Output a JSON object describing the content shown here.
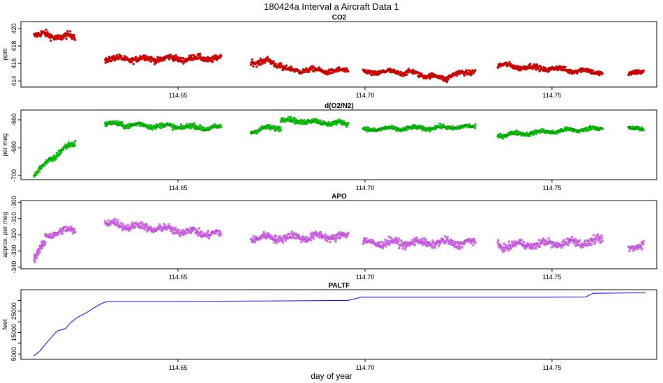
{
  "figure": {
    "title": "180424a   Interval a Aircraft Data 1",
    "xlabel": "day of year"
  },
  "chart_data": [
    {
      "type": "scatter",
      "title": "CO2",
      "ylabel": "ppm",
      "xlim": [
        114.608,
        114.778
      ],
      "ylim": [
        413.3,
        420.8
      ],
      "xticks": [
        "114.65",
        "114.70",
        "114.75"
      ],
      "xtick_values": [
        114.65,
        114.7,
        114.75
      ],
      "yticks": [
        414,
        416,
        418,
        420
      ],
      "grid": false,
      "colors": {
        "fill": "#ff0000",
        "stroke": "#8b0000"
      },
      "segments": [
        {
          "x_start": 114.6115,
          "x_end": 114.6225,
          "y_start": 419.3,
          "y_end": 419.0,
          "noise": 0.7
        },
        {
          "x_start": 114.6305,
          "x_end": 114.6615,
          "y_start": 416.5,
          "y_end": 416.6,
          "noise": 0.6
        },
        {
          "x_start": 114.6695,
          "x_end": 114.6735,
          "y_start": 416.2,
          "y_end": 416.3,
          "noise": 0.6
        },
        {
          "x_start": 114.6735,
          "x_end": 114.678,
          "y_start": 416.3,
          "y_end": 415.8,
          "noise": 0.6
        },
        {
          "x_start": 114.678,
          "x_end": 114.6955,
          "y_start": 415.3,
          "y_end": 415.1,
          "noise": 0.5
        },
        {
          "x_start": 114.6995,
          "x_end": 114.712,
          "y_start": 415.0,
          "y_end": 415.0,
          "noise": 0.5
        },
        {
          "x_start": 114.712,
          "x_end": 114.722,
          "y_start": 415.0,
          "y_end": 414.2,
          "noise": 0.5
        },
        {
          "x_start": 114.722,
          "x_end": 114.7295,
          "y_start": 414.5,
          "y_end": 415.2,
          "noise": 0.5
        },
        {
          "x_start": 114.7355,
          "x_end": 114.7635,
          "y_start": 415.8,
          "y_end": 415.0,
          "noise": 0.5
        },
        {
          "x_start": 114.7705,
          "x_end": 114.7745,
          "y_start": 414.6,
          "y_end": 415.2,
          "noise": 0.5
        }
      ]
    },
    {
      "type": "scatter",
      "title": "d(O2/N2)",
      "ylabel": "per meg",
      "xlim": [
        114.608,
        114.778
      ],
      "ylim": [
        -703,
        -653
      ],
      "xticks": [
        "114.65",
        "114.70",
        "114.75"
      ],
      "xtick_values": [
        114.65,
        114.7,
        114.75
      ],
      "yticks": [
        -700,
        -680,
        -660
      ],
      "grid": false,
      "colors": {
        "fill": "#00ff00",
        "stroke": "#006400"
      },
      "segments": [
        {
          "x_start": 114.6115,
          "x_end": 114.616,
          "y_start": -700,
          "y_end": -688,
          "noise": 3
        },
        {
          "x_start": 114.616,
          "x_end": 114.6225,
          "y_start": -688,
          "y_end": -676,
          "noise": 4
        },
        {
          "x_start": 114.6305,
          "x_end": 114.6615,
          "y_start": -663,
          "y_end": -666,
          "noise": 3
        },
        {
          "x_start": 114.6695,
          "x_end": 114.6775,
          "y_start": -668,
          "y_end": -665,
          "noise": 3
        },
        {
          "x_start": 114.6775,
          "x_end": 114.6955,
          "y_start": -660,
          "y_end": -663,
          "noise": 3
        },
        {
          "x_start": 114.6995,
          "x_end": 114.7295,
          "y_start": -667,
          "y_end": -665,
          "noise": 2.5
        },
        {
          "x_start": 114.7355,
          "x_end": 114.7635,
          "y_start": -671,
          "y_end": -666,
          "noise": 2.5
        },
        {
          "x_start": 114.7705,
          "x_end": 114.7745,
          "y_start": -665,
          "y_end": -668,
          "noise": 2.5
        }
      ]
    },
    {
      "type": "scatter",
      "title": "APO",
      "ylabel": "approx. per meg",
      "xlim": [
        114.608,
        114.778
      ],
      "ylim": [
        -341,
        -299
      ],
      "xticks": [
        "114.65",
        "114.70",
        "114.75"
      ],
      "xtick_values": [
        114.65,
        114.7,
        114.75
      ],
      "yticks": [
        -340,
        -330,
        -320,
        -310,
        -300
      ],
      "grid": false,
      "colors": {
        "fill": "#ee82ee",
        "stroke": "#9a32cd"
      },
      "segments": [
        {
          "x_start": 114.6115,
          "x_end": 114.6145,
          "y_start": -334,
          "y_end": -326,
          "noise": 4
        },
        {
          "x_start": 114.6145,
          "x_end": 114.6225,
          "y_start": -320,
          "y_end": -317,
          "noise": 4
        },
        {
          "x_start": 114.6305,
          "x_end": 114.6615,
          "y_start": -313,
          "y_end": -320,
          "noise": 4
        },
        {
          "x_start": 114.6695,
          "x_end": 114.6955,
          "y_start": -322,
          "y_end": -321,
          "noise": 4
        },
        {
          "x_start": 114.6995,
          "x_end": 114.7295,
          "y_start": -325,
          "y_end": -325,
          "noise": 4
        },
        {
          "x_start": 114.7355,
          "x_end": 114.7635,
          "y_start": -327,
          "y_end": -324,
          "noise": 4
        },
        {
          "x_start": 114.7705,
          "x_end": 114.7745,
          "y_start": -327,
          "y_end": -327,
          "noise": 4
        }
      ]
    },
    {
      "type": "line",
      "title": "PALTF",
      "ylabel": "feet",
      "xlabel": "day of year",
      "xlim": [
        114.608,
        114.778
      ],
      "ylim": [
        2500,
        35000
      ],
      "xticks": [
        "114.65",
        "114.70",
        "114.75"
      ],
      "xtick_values": [
        114.65,
        114.7,
        114.75
      ],
      "yticks": [
        5000,
        15000,
        25000
      ],
      "extra_yticks": [
        10000,
        20000,
        30000
      ],
      "grid": false,
      "colors": {
        "line": "#0000ff"
      },
      "x": [
        114.6115,
        114.613,
        114.615,
        114.617,
        114.618,
        114.619,
        114.62,
        114.6215,
        114.6235,
        114.6255,
        114.6275,
        114.6295,
        114.631,
        114.65,
        114.67,
        114.68,
        114.6955,
        114.699,
        114.72,
        114.75,
        114.759,
        114.761,
        114.77,
        114.775
      ],
      "y": [
        4200,
        6200,
        10500,
        14500,
        16000,
        16300,
        17000,
        20000,
        22500,
        24200,
        26500,
        28500,
        29500,
        29500,
        29700,
        29800,
        30000,
        31500,
        31500,
        31500,
        31600,
        33300,
        33500,
        33500
      ]
    }
  ]
}
